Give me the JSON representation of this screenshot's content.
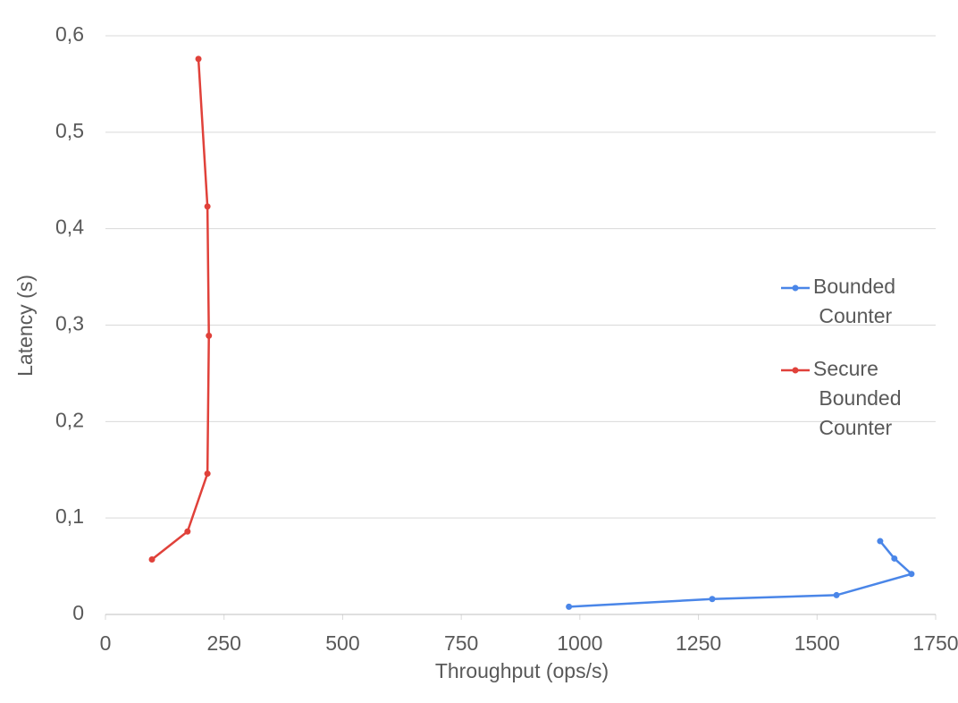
{
  "chart_data": {
    "type": "line",
    "x_label": "Throughput (ops/s)",
    "y_label": "Latency (s)",
    "xlim": [
      0,
      1750
    ],
    "xticks": [
      0,
      250,
      500,
      750,
      1000,
      1250,
      1500,
      1750
    ],
    "ylim": [
      0,
      0.6
    ],
    "yticks": [
      0,
      {
        "value": 0.1,
        "label": "0,1"
      },
      {
        "value": 0.2,
        "label": "0,2"
      },
      {
        "value": 0.3,
        "label": "0,3"
      },
      {
        "value": 0.4,
        "label": "0,4"
      },
      {
        "value": 0.5,
        "label": "0,5"
      },
      {
        "value": 0.6,
        "label": "0,6"
      }
    ],
    "grid": true,
    "legend": "right",
    "series": [
      {
        "name": "Bounded Counter",
        "color": "#4a86e8",
        "x": [
          977,
          1279,
          1541,
          1699,
          1663,
          1633
        ],
        "values": [
          0.008,
          0.016,
          0.02,
          0.042,
          0.058,
          0.076
        ]
      },
      {
        "name": "Secure Bounded Counter",
        "color": "#e0413a",
        "x": [
          98,
          173,
          215,
          218,
          215,
          196
        ],
        "values": [
          0.057,
          0.086,
          0.146,
          0.289,
          0.423,
          0.576
        ]
      }
    ]
  }
}
